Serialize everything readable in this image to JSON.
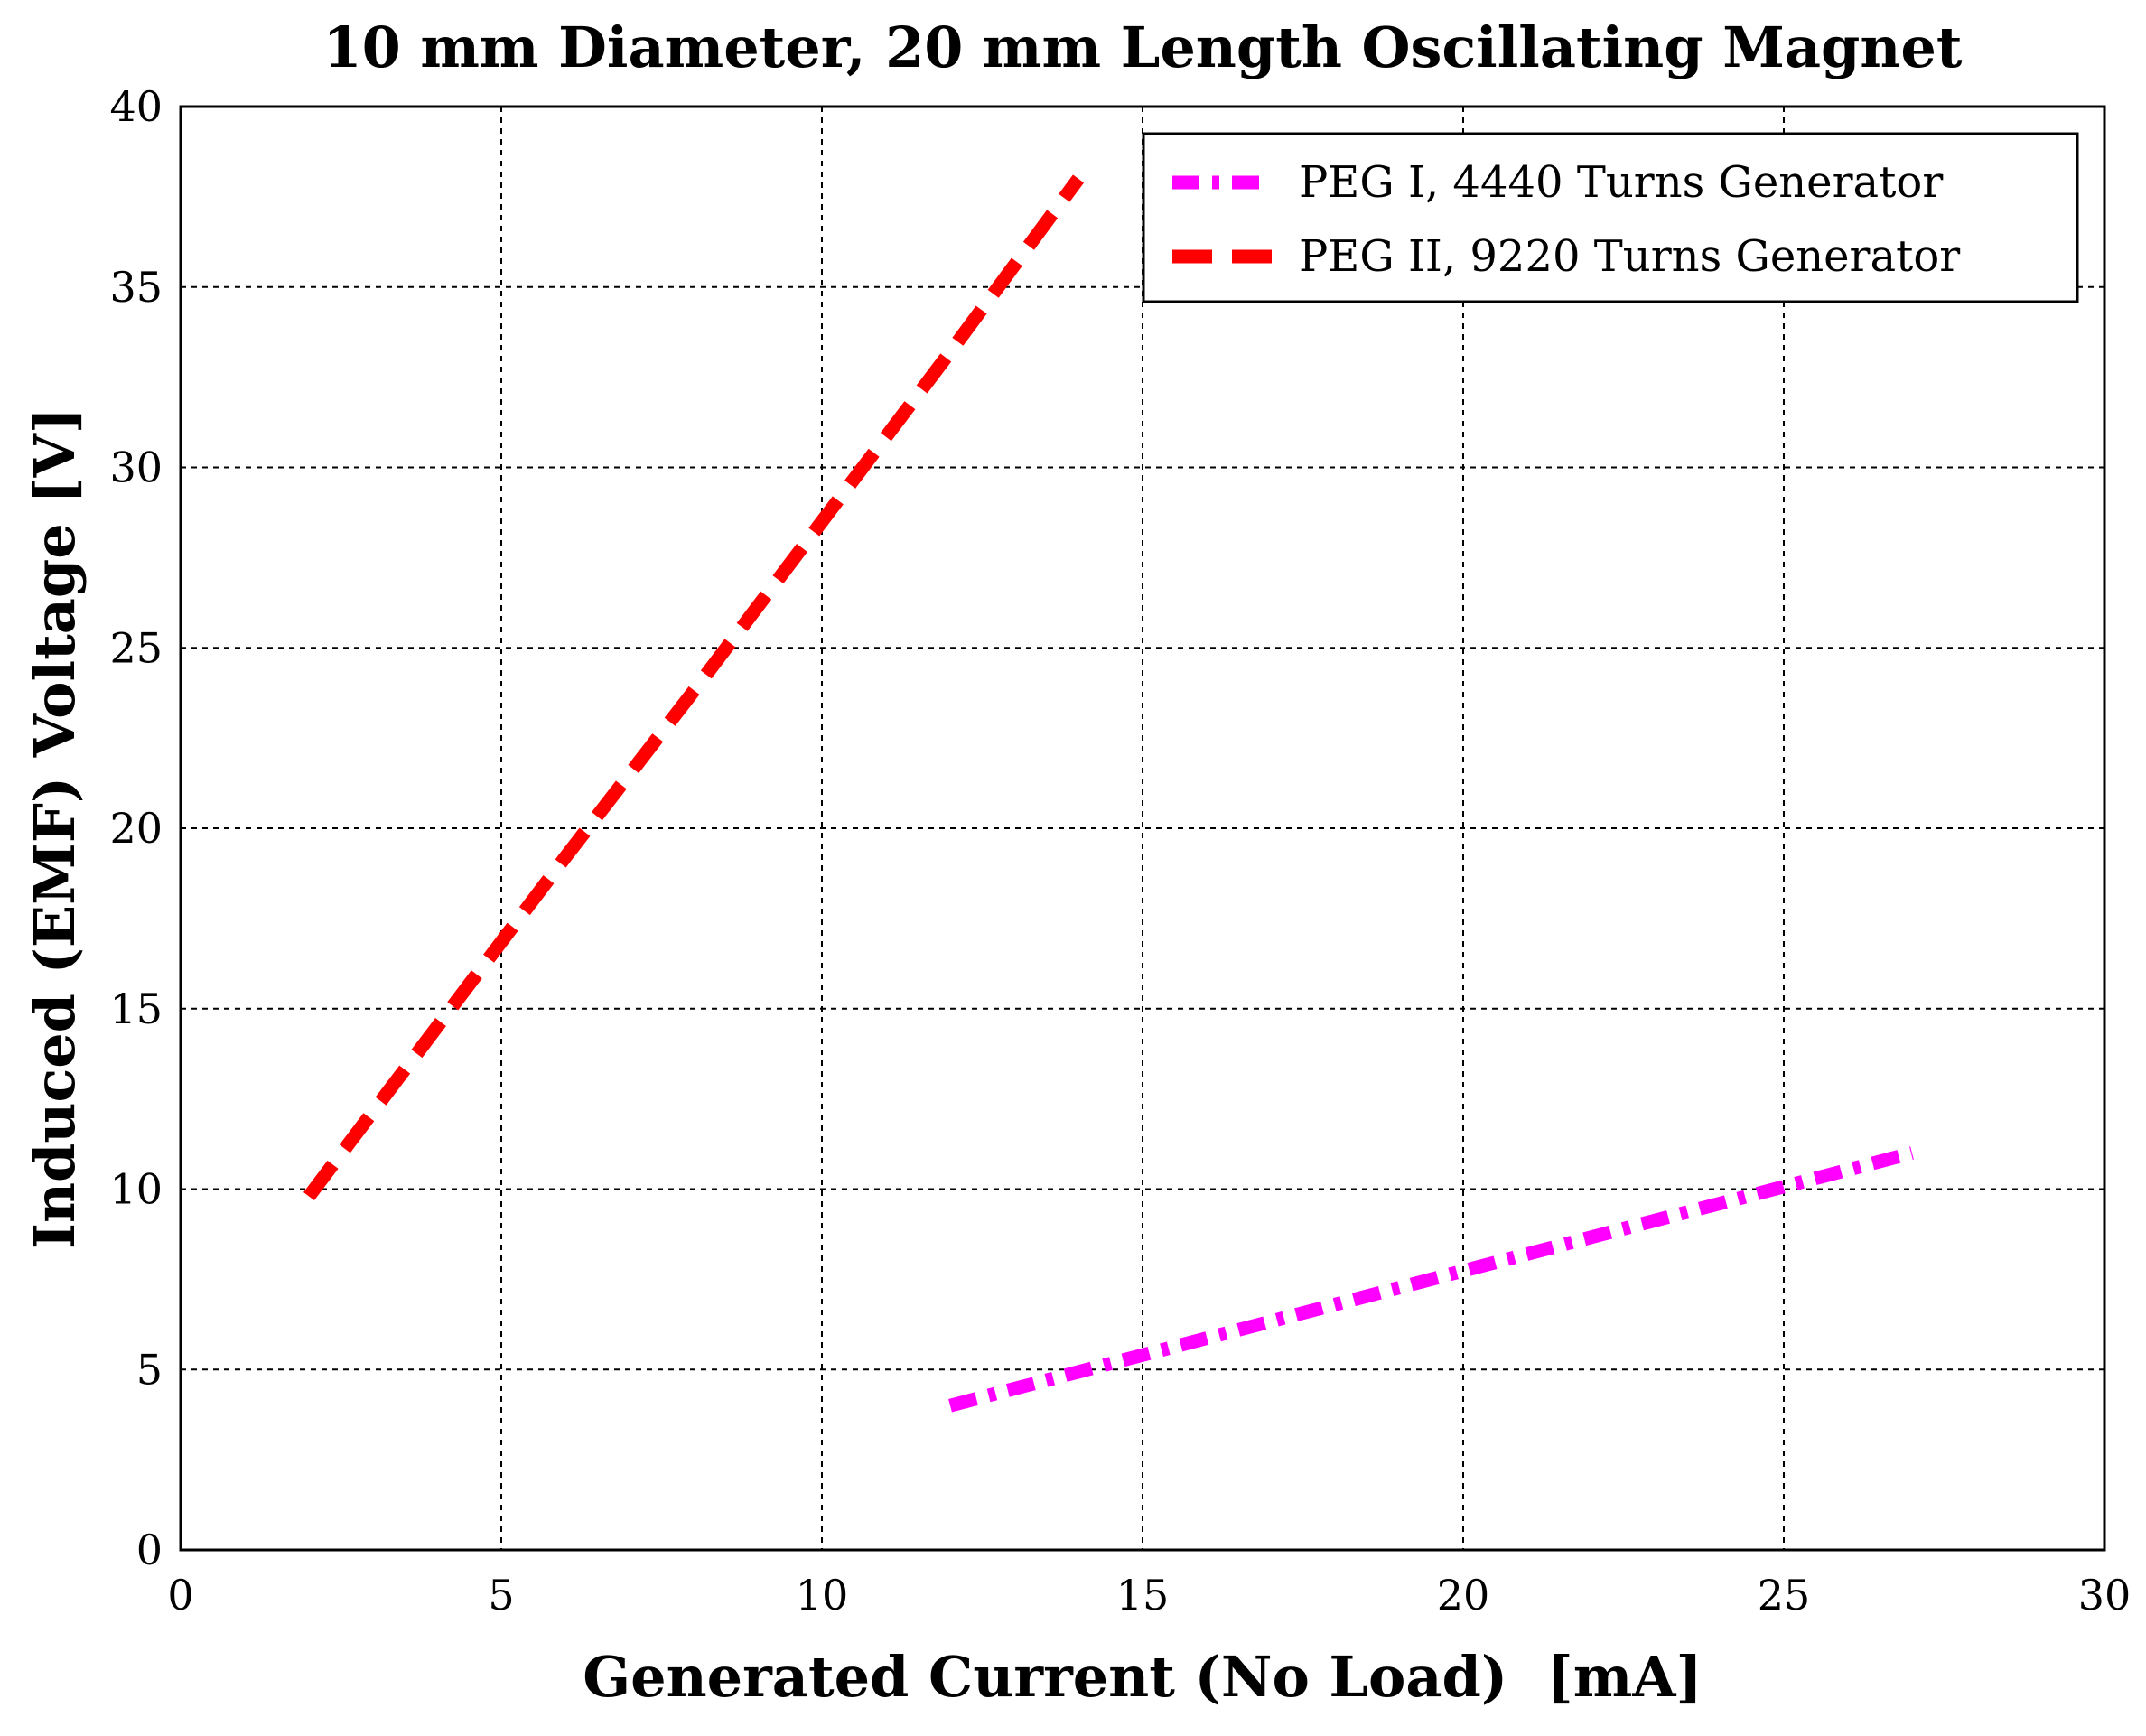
{
  "chart_data": {
    "type": "line",
    "title": "10 mm Diameter, 20 mm Length Oscillating Magnet",
    "xlabel": "Generated Current (No Load)  [mA]",
    "ylabel": "Induced (EMF) Voltage [V]",
    "xlim": [
      0,
      30
    ],
    "ylim": [
      0,
      40
    ],
    "xticks": [
      0,
      5,
      10,
      15,
      20,
      25,
      30
    ],
    "yticks": [
      0,
      5,
      10,
      15,
      20,
      25,
      30,
      35,
      40
    ],
    "xtick_labels": [
      "0",
      "5",
      "10",
      "15",
      "20",
      "25",
      "30"
    ],
    "ytick_labels": [
      "0",
      "5",
      "10",
      "15",
      "20",
      "25",
      "30",
      "35",
      "40"
    ],
    "grid": true,
    "legend_position": "top-right",
    "series": [
      {
        "name": "PEG I, 4440 Turns Generator",
        "color": "#ff00ff",
        "line_style": "dash-dot",
        "x": [
          12,
          15,
          18,
          21,
          24,
          27
        ],
        "y": [
          4.0,
          5.4,
          6.8,
          8.2,
          9.6,
          11.0
        ]
      },
      {
        "name": "PEG II, 9220 Turns Generator",
        "color": "#ff0000",
        "line_style": "dashed",
        "x": [
          2,
          4,
          6,
          8,
          10,
          12,
          14
        ],
        "y": [
          9.8,
          14.5,
          19.2,
          23.8,
          28.5,
          33.2,
          38.0
        ]
      }
    ]
  }
}
